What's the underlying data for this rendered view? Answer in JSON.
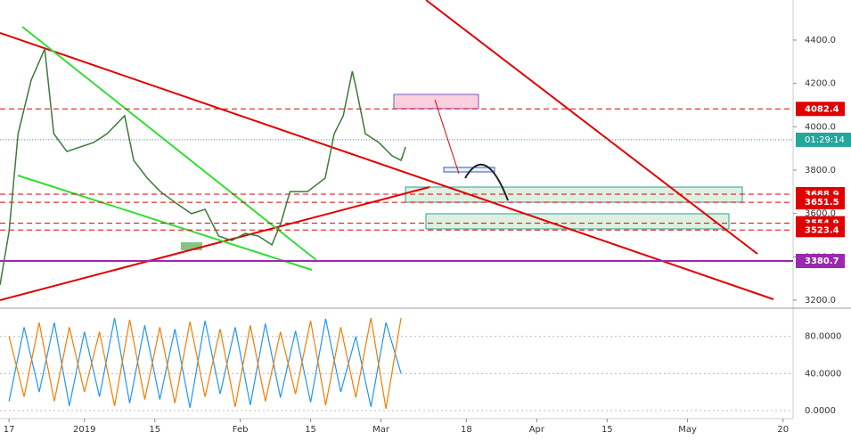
{
  "chart_data": [
    {
      "type": "line",
      "x": [
        -1.8,
        0,
        1.8,
        4.4,
        7.1,
        8.9,
        11.5,
        14.2,
        16.8,
        19.5,
        23.0,
        24.8,
        27.5,
        30.1,
        33.7,
        36.3,
        39.0,
        41.7,
        44.3,
        47.0,
        49.6,
        52.3,
        54.1,
        55.9,
        59.4,
        62.9,
        64.7,
        66.5,
        68.3,
        69.1,
        70.9,
        73.6,
        76.2,
        78.0,
        78.9
      ],
      "values": [
        3270,
        3516,
        3968,
        4215,
        4359,
        3968,
        3886,
        3907,
        3927,
        3968,
        4051,
        3845,
        3763,
        3701,
        3640,
        3599,
        3619,
        3496,
        3475,
        3508,
        3496,
        3455,
        3557,
        3701,
        3701,
        3763,
        3968,
        4051,
        4256,
        4174,
        3968,
        3927,
        3866,
        3845,
        3907
      ],
      "color": "#3d7a3a",
      "xlim": [
        -1.8,
        156
      ],
      "xticks": [
        {
          "value": 0,
          "label": "17"
        },
        {
          "value": 15,
          "label": "2019"
        },
        {
          "value": 29,
          "label": "15"
        },
        {
          "value": 46,
          "label": "Feb"
        },
        {
          "value": 60,
          "label": "15"
        },
        {
          "value": 74,
          "label": "Mar"
        },
        {
          "value": 91,
          "label": "18"
        },
        {
          "value": 105,
          "label": "Apr"
        },
        {
          "value": 119,
          "label": "15"
        },
        {
          "value": 135,
          "label": "May"
        },
        {
          "value": 154,
          "label": "20"
        }
      ],
      "ylim": [
        3167,
        4585
      ],
      "yticks": [
        {
          "value": 3200,
          "label": "3200.0"
        },
        {
          "value": 3400,
          "label": "3400.0"
        },
        {
          "value": 3600,
          "label": "3600.0"
        },
        {
          "value": 3800,
          "label": "3800.0"
        },
        {
          "value": 4000,
          "label": "4000.0"
        },
        {
          "value": 4200,
          "label": "4200.0"
        },
        {
          "value": 4400,
          "label": "4400.0"
        }
      ],
      "levels": [
        4082.4,
        3688.9,
        3651.5,
        3554.9,
        3523.4
      ],
      "level_color": "#e00000",
      "support_level": 3380.7,
      "support_color": "#9c27b0",
      "last_price": 3940,
      "countdown": "01:29:14",
      "countdown_color": "#26a69a"
    },
    {
      "type": "oscillator",
      "x": [
        0,
        3,
        6,
        9,
        12,
        15,
        18,
        21,
        24,
        27,
        30,
        33,
        36,
        39,
        42,
        45,
        48,
        51,
        54,
        57,
        60,
        63,
        66,
        69,
        72,
        75,
        78
      ],
      "series": [
        {
          "color": "#2196f3",
          "values": [
            10,
            90,
            20,
            95,
            5,
            85,
            15,
            100,
            8,
            92,
            12,
            88,
            3,
            97,
            18,
            90,
            6,
            94,
            14,
            86,
            9,
            99,
            20,
            80,
            4,
            95,
            40
          ]
        },
        {
          "color": "#f57c00",
          "values": [
            80,
            15,
            95,
            10,
            90,
            20,
            85,
            5,
            98,
            12,
            90,
            8,
            96,
            15,
            88,
            4,
            92,
            10,
            85,
            18,
            97,
            6,
            90,
            14,
            100,
            2,
            100
          ]
        }
      ],
      "xlim": [
        -1.8,
        156
      ],
      "ylim": [
        -8.7,
        108.6
      ],
      "yticks": [
        {
          "value": 0,
          "label": "0.0000"
        },
        {
          "value": 40,
          "label": "40.0000"
        },
        {
          "value": 80,
          "label": "80.0000"
        }
      ]
    }
  ]
}
